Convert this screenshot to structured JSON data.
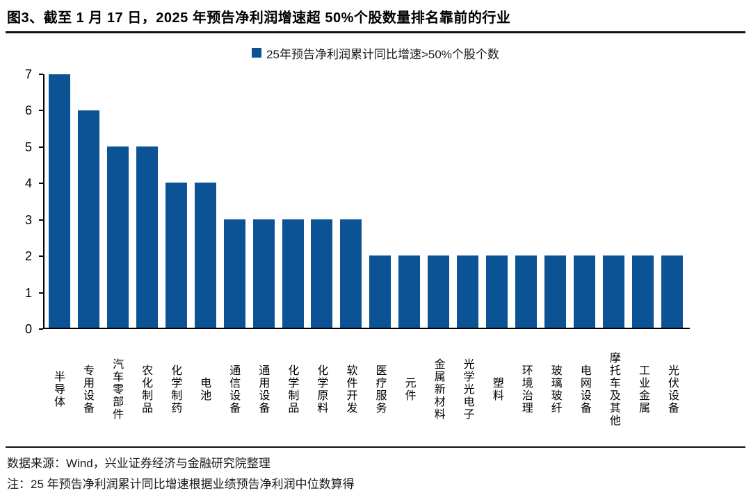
{
  "title": "图3、截至 1 月 17 日，2025 年预告净利润增速超 50%个股数量排名靠前的行业",
  "legend": "25年预告净利润累计同比增速>50%个股个数",
  "footer": {
    "source": "数据来源：Wind，兴业证券经济与金融研究院整理",
    "note": "注：25 年预告净利润累计同比增速根据业绩预告净利润中位数算得"
  },
  "colors": {
    "bar": "#0B5394",
    "axis": "#000000",
    "rule": "#111111"
  },
  "chart_data": {
    "type": "bar",
    "title": "25年预告净利润累计同比增速>50%个股个数",
    "categories": [
      "半导体",
      "专用设备",
      "汽车零部件",
      "农化制品",
      "化学制药",
      "电池",
      "通信设备",
      "通用设备",
      "化学制品",
      "化学原料",
      "软件开发",
      "医疗服务",
      "元件",
      "金属新材料",
      "光学光电子",
      "塑料",
      "环境治理",
      "玻璃玻纤",
      "电网设备",
      "摩托车及其他",
      "工业金属",
      "光伏设备"
    ],
    "values": [
      7,
      6,
      5,
      5,
      4,
      4,
      3,
      3,
      3,
      3,
      3,
      2,
      2,
      2,
      2,
      2,
      2,
      2,
      2,
      2,
      2,
      2
    ],
    "xlabel": "",
    "ylabel": "",
    "ylim": [
      0,
      7
    ],
    "yticks": [
      0,
      1,
      2,
      3,
      4,
      5,
      6,
      7
    ],
    "grid": false,
    "legend_position": "top-center",
    "bar_color": "#0B5394"
  }
}
